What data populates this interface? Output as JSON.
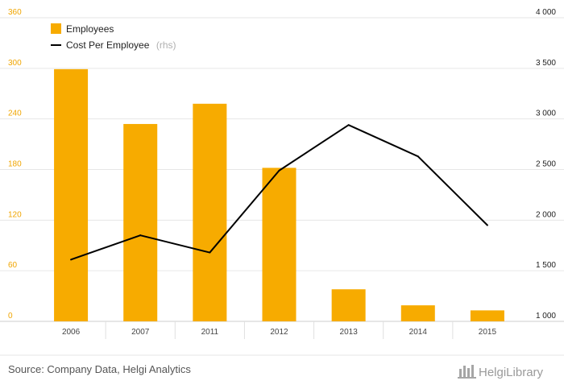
{
  "chart_data": {
    "type": "bar",
    "categories": [
      "2006",
      "2007",
      "2011",
      "2012",
      "2013",
      "2014",
      "2015"
    ],
    "series": [
      {
        "name": "Employees",
        "type": "bar",
        "axis": "left",
        "values": [
          299,
          234,
          258,
          182,
          38,
          19,
          13
        ]
      },
      {
        "name": "Cost Per Employee",
        "name_note": "(rhs)",
        "type": "line",
        "axis": "right",
        "values": [
          1610,
          1850,
          1680,
          2490,
          2940,
          2630,
          1950
        ]
      }
    ],
    "y_left": {
      "range": [
        0,
        360
      ],
      "ticks": [
        "0",
        "60",
        "120",
        "180",
        "240",
        "300",
        "360"
      ]
    },
    "y_right": {
      "range": [
        1000,
        4000
      ],
      "ticks": [
        "1 000",
        "1 500",
        "2 000",
        "2 500",
        "3 000",
        "3 500",
        "4 000"
      ]
    },
    "grid": true,
    "legend_position": "top-left",
    "colors": {
      "bar": "#f7ab00",
      "line": "#000000",
      "left_axis": "#f0a500",
      "grid": "#e6e6e6"
    }
  },
  "footer": {
    "source": "Source: Company Data, Helgi Analytics",
    "brand": "HelgiLibrary"
  }
}
